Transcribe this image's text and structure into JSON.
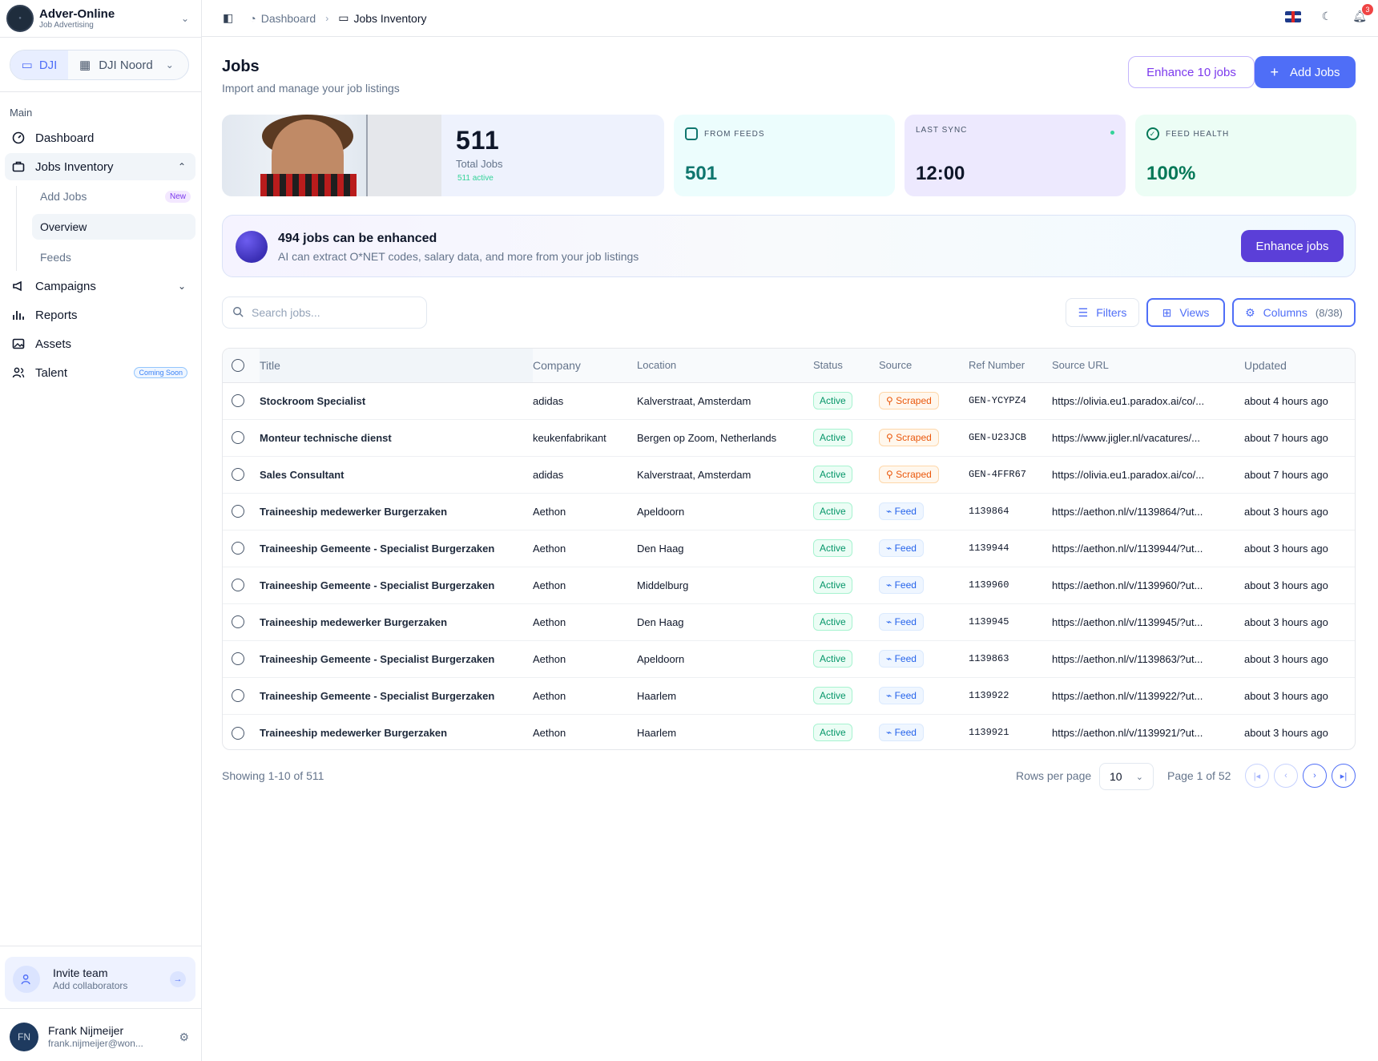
{
  "org": {
    "name": "Adver-Online",
    "subtitle": "Job Advertising"
  },
  "workspaces": {
    "active": "DJI",
    "other": "DJI Noord"
  },
  "sidebar": {
    "section_label": "Main",
    "items": [
      {
        "label": "Dashboard",
        "icon": "gauge-icon"
      },
      {
        "label": "Jobs Inventory",
        "icon": "briefcase-icon"
      },
      {
        "label": "Campaigns",
        "icon": "megaphone-icon"
      },
      {
        "label": "Reports",
        "icon": "bar-chart-icon"
      },
      {
        "label": "Assets",
        "icon": "image-icon"
      },
      {
        "label": "Talent",
        "icon": "users-icon",
        "badge": "Coming Soon"
      }
    ],
    "sub_items": [
      {
        "label": "Add Jobs",
        "badge": "New"
      },
      {
        "label": "Overview"
      },
      {
        "label": "Feeds"
      }
    ],
    "invite": {
      "title": "Invite team",
      "subtitle": "Add collaborators"
    },
    "user": {
      "initials": "FN",
      "name": "Frank Nijmeijer",
      "email": "frank.nijmeijer@won..."
    }
  },
  "topbar": {
    "breadcrumb": [
      "Dashboard",
      "Jobs Inventory"
    ],
    "notifications": "3"
  },
  "header": {
    "title": "Jobs",
    "subtitle": "Import and manage your job listings",
    "enhance_label": "Enhance 10 jobs",
    "add_label": "Add Jobs"
  },
  "stats": {
    "total": "511",
    "total_label": "Total Jobs",
    "active_label": "511 active",
    "feeds_label": "FROM FEEDS",
    "feeds_value": "501",
    "sync_label": "LAST SYNC",
    "sync_value": "12:00",
    "health_label": "FEED HEALTH",
    "health_value": "100%"
  },
  "banner": {
    "title": "494 jobs can be enhanced",
    "subtitle": "AI can extract O*NET codes, salary data, and more from your job listings",
    "button": "Enhance jobs"
  },
  "toolbar": {
    "search_placeholder": "Search jobs...",
    "filters": "Filters",
    "views": "Views",
    "columns": "Columns",
    "columns_count": "(8/38)"
  },
  "table": {
    "headers": [
      "Title",
      "Company",
      "Location",
      "Status",
      "Source",
      "Ref Number",
      "Source URL",
      "Updated"
    ],
    "rows": [
      {
        "title": "Stockroom Specialist",
        "company": "adidas",
        "location": "Kalverstraat, Amsterdam",
        "status": "Active",
        "source": "Scraped",
        "ref": "GEN-YCYPZ4",
        "url": "https://olivia.eu1.paradox.ai/co/...",
        "updated": "about 4 hours ago"
      },
      {
        "title": "Monteur technische dienst",
        "company": "keukenfabrikant",
        "location": "Bergen op Zoom, Netherlands",
        "status": "Active",
        "source": "Scraped",
        "ref": "GEN-U23JCB",
        "url": "https://www.jigler.nl/vacatures/...",
        "updated": "about 7 hours ago"
      },
      {
        "title": "Sales Consultant",
        "company": "adidas",
        "location": "Kalverstraat, Amsterdam",
        "status": "Active",
        "source": "Scraped",
        "ref": "GEN-4FFR67",
        "url": "https://olivia.eu1.paradox.ai/co/...",
        "updated": "about 7 hours ago"
      },
      {
        "title": "Traineeship medewerker Burgerzaken",
        "company": "Aethon",
        "location": "Apeldoorn",
        "status": "Active",
        "source": "Feed",
        "ref": "1139864",
        "url": "https://aethon.nl/v/1139864/?ut...",
        "updated": "about 3 hours ago"
      },
      {
        "title": "Traineeship Gemeente - Specialist Burgerzaken",
        "company": "Aethon",
        "location": "Den Haag",
        "status": "Active",
        "source": "Feed",
        "ref": "1139944",
        "url": "https://aethon.nl/v/1139944/?ut...",
        "updated": "about 3 hours ago"
      },
      {
        "title": "Traineeship Gemeente - Specialist Burgerzaken",
        "company": "Aethon",
        "location": "Middelburg",
        "status": "Active",
        "source": "Feed",
        "ref": "1139960",
        "url": "https://aethon.nl/v/1139960/?ut...",
        "updated": "about 3 hours ago"
      },
      {
        "title": "Traineeship medewerker Burgerzaken",
        "company": "Aethon",
        "location": "Den Haag",
        "status": "Active",
        "source": "Feed",
        "ref": "1139945",
        "url": "https://aethon.nl/v/1139945/?ut...",
        "updated": "about 3 hours ago"
      },
      {
        "title": "Traineeship Gemeente - Specialist Burgerzaken",
        "company": "Aethon",
        "location": "Apeldoorn",
        "status": "Active",
        "source": "Feed",
        "ref": "1139863",
        "url": "https://aethon.nl/v/1139863/?ut...",
        "updated": "about 3 hours ago"
      },
      {
        "title": "Traineeship Gemeente - Specialist Burgerzaken",
        "company": "Aethon",
        "location": "Haarlem",
        "status": "Active",
        "source": "Feed",
        "ref": "1139922",
        "url": "https://aethon.nl/v/1139922/?ut...",
        "updated": "about 3 hours ago"
      },
      {
        "title": "Traineeship medewerker Burgerzaken",
        "company": "Aethon",
        "location": "Haarlem",
        "status": "Active",
        "source": "Feed",
        "ref": "1139921",
        "url": "https://aethon.nl/v/1139921/?ut...",
        "updated": "about 3 hours ago"
      }
    ]
  },
  "pagination": {
    "showing": "Showing 1-10 of 511",
    "rows_per_page_label": "Rows per page",
    "rows_per_page": "10",
    "page_info": "Page 1 of 52"
  }
}
